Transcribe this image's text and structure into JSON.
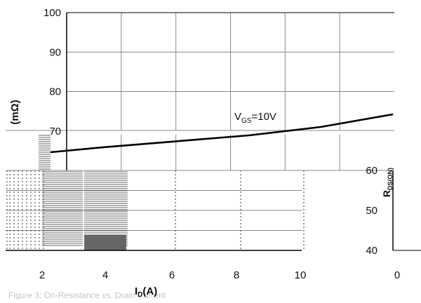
{
  "chart_data": {
    "type": "line",
    "title": "",
    "xlabel": "I",
    "xlabel_sub": "D",
    "xlabel_unit": "(A)",
    "ylabel": "(mΩ)",
    "ylabel_right": "R",
    "ylabel_right_sub": "DS(ON)",
    "xlim": [
      0,
      12
    ],
    "ylim": [
      40,
      100
    ],
    "x_ticks": [
      "2",
      "4",
      "6",
      "8",
      "10"
    ],
    "x_tick_values": [
      2,
      4,
      6,
      8,
      10
    ],
    "y_ticks_upper": [
      "100",
      "90",
      "80",
      "70"
    ],
    "y_tick_values_upper": [
      100,
      90,
      80,
      70
    ],
    "y_ticks_lower": [
      "60",
      "50",
      "40"
    ],
    "y_tick_values_lower": [
      60,
      50,
      40
    ],
    "second_panel_x_tick": "0",
    "grid": true,
    "series": [
      {
        "name": "V",
        "name_sub": "GS",
        "name_suffix": "=10V",
        "x": [
          2.5,
          4,
          6,
          8,
          10,
          12
        ],
        "y": [
          65,
          66.2,
          67.6,
          69,
          71,
          74
        ]
      }
    ],
    "caption_fragment": "Figure 3: On-Resistance vs. Drain Current"
  },
  "colors": {
    "line": "#000000",
    "grid": "#888888",
    "axis": "#000000",
    "hatch": "#333333",
    "background": "#ffffff"
  }
}
